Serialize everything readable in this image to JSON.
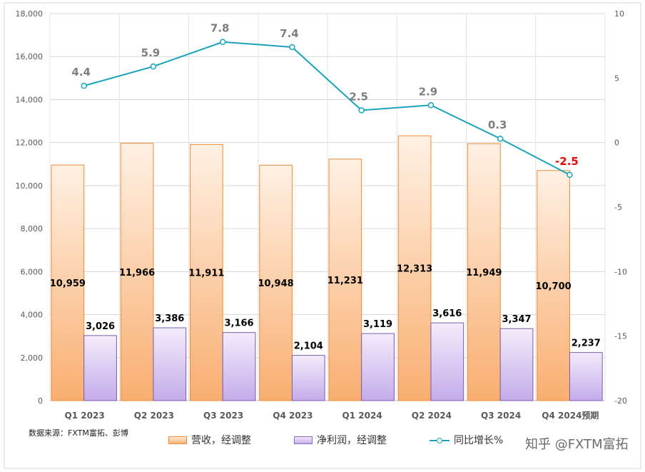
{
  "chart_data": {
    "type": "bar",
    "categories": [
      "Q1 2023",
      "Q2 2023",
      "Q3 2023",
      "Q4 2023",
      "Q1 2024",
      "Q2 2024",
      "Q3 2024",
      "Q4 2024预期"
    ],
    "series": [
      {
        "name": "营收，经调整",
        "type": "bar",
        "axis": "left",
        "color": "#f5a25d",
        "values": [
          10959,
          11966,
          11911,
          10948,
          11231,
          12313,
          11949,
          10700
        ],
        "labels": [
          "10,959",
          "11,966",
          "11,911",
          "10,948",
          "11,231",
          "12,313",
          "11,949",
          "10,700"
        ]
      },
      {
        "name": "净利润，经调整",
        "type": "bar",
        "axis": "left",
        "color": "#b79de0",
        "values": [
          3026,
          3386,
          3166,
          2104,
          3119,
          3616,
          3347,
          2237
        ],
        "labels": [
          "3,026",
          "3,386",
          "3,166",
          "2,104",
          "3,119",
          "3,616",
          "3,347",
          "2,237"
        ]
      },
      {
        "name": "同比增长%",
        "type": "line",
        "axis": "right",
        "color": "#1aa3b8",
        "values": [
          4.4,
          5.9,
          7.8,
          7.4,
          2.5,
          2.9,
          0.3,
          -2.5
        ],
        "labels": [
          "4.4",
          "5.9",
          "7.8",
          "7.4",
          "2.5",
          "2.9",
          "0.3",
          "-2.5"
        ],
        "highlight_color": "#e60000"
      }
    ],
    "ylim": [
      0,
      18000
    ],
    "yticks": [
      "0",
      "2,000",
      "4,000",
      "6,000",
      "8,000",
      "10,000",
      "12,000",
      "14,000",
      "16,000",
      "18,000"
    ],
    "y2lim": [
      -20,
      10
    ],
    "y2ticks": [
      "-20",
      "-15",
      "-10",
      "-5",
      "0",
      "5",
      "10"
    ],
    "grid": true,
    "legend_position": "bottom"
  },
  "source_note": "数据来源：FXTM富拓、彭博",
  "legend": {
    "revenue": "营收，经调整",
    "net_profit": "净利润，经调整",
    "growth": "同比增长%"
  },
  "watermark": "知乎 @FXTM富拓"
}
